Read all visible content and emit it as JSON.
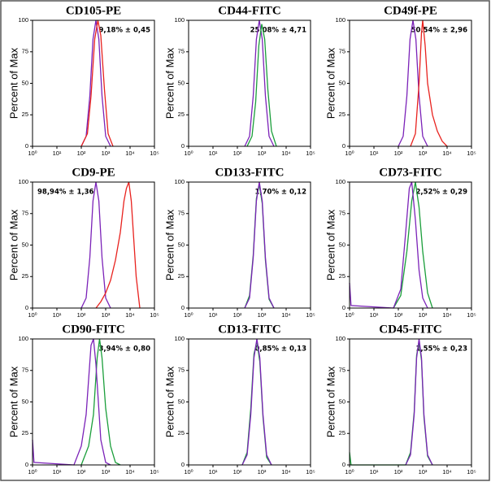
{
  "chart_data": [
    {
      "type": "line",
      "title": "CD105-PE",
      "annotation": "9,18% ± 0,45",
      "annotation_position": "top-right",
      "ylabel": "Percent of Max",
      "xscale": "log",
      "xlim": [
        1,
        100000
      ],
      "xticks": [
        {
          "value": 1,
          "label": "10⁰"
        },
        {
          "value": 10,
          "label": "10¹"
        },
        {
          "value": 100,
          "label": "10²"
        },
        {
          "value": 1000,
          "label": "10³"
        },
        {
          "value": 10000,
          "label": "10⁴"
        },
        {
          "value": 100000,
          "label": "10⁵"
        }
      ],
      "ylim": [
        0,
        100
      ],
      "yticks": [
        0,
        25,
        50,
        75,
        100
      ],
      "series": [
        {
          "color": "#7b22b8",
          "x": [
            100,
            158,
            224,
            302,
            398,
            525,
            708,
            1000,
            1585
          ],
          "values": [
            0,
            8,
            40,
            85,
            100,
            85,
            40,
            8,
            0
          ]
        },
        {
          "color": "#e8221e",
          "x": [
            100,
            178,
            251,
            355,
            479,
            631,
            891,
            1259,
            1995
          ],
          "values": [
            0,
            10,
            40,
            85,
            100,
            88,
            45,
            10,
            0
          ]
        }
      ]
    },
    {
      "type": "line",
      "title": "CD44-FITC",
      "annotation": "25,08% ± 4,71",
      "annotation_position": "top-right",
      "ylabel": "Percent of Max",
      "xscale": "log",
      "xlim": [
        1,
        100000
      ],
      "xticks": [
        {
          "value": 1,
          "label": "10⁰"
        },
        {
          "value": 10,
          "label": "10¹"
        },
        {
          "value": 100,
          "label": "10²"
        },
        {
          "value": 1000,
          "label": "10³"
        },
        {
          "value": 10000,
          "label": "10⁴"
        },
        {
          "value": 100000,
          "label": "10⁵"
        }
      ],
      "ylim": [
        0,
        100
      ],
      "yticks": [
        0,
        25,
        50,
        75,
        100
      ],
      "series": [
        {
          "color": "#7b22b8",
          "x": [
            200,
            316,
            447,
            603,
            794,
            1047,
            1413,
            1995,
            3162
          ],
          "values": [
            0,
            8,
            40,
            85,
            100,
            85,
            40,
            8,
            0
          ]
        },
        {
          "color": "#1a9e3a",
          "x": [
            251,
            398,
            562,
            759,
            1000,
            1318,
            1778,
            2512,
            3981
          ],
          "values": [
            0,
            8,
            35,
            80,
            97,
            85,
            45,
            12,
            0
          ]
        }
      ]
    },
    {
      "type": "line",
      "title": "CD49f-PE",
      "annotation": "50,54% ± 2,96",
      "annotation_position": "top-right",
      "ylabel": "Percent of Max",
      "xscale": "log",
      "xlim": [
        1,
        100000
      ],
      "xticks": [
        {
          "value": 1,
          "label": "10⁰"
        },
        {
          "value": 10,
          "label": "10¹"
        },
        {
          "value": 100,
          "label": "10²"
        },
        {
          "value": 1000,
          "label": "10³"
        },
        {
          "value": 10000,
          "label": "10⁴"
        },
        {
          "value": 100000,
          "label": "10⁵"
        }
      ],
      "ylim": [
        0,
        100
      ],
      "yticks": [
        0,
        25,
        50,
        75,
        100
      ],
      "series": [
        {
          "color": "#7b22b8",
          "x": [
            100,
            158,
            224,
            302,
            398,
            525,
            708,
            1000,
            1585
          ],
          "values": [
            0,
            8,
            40,
            85,
            100,
            85,
            40,
            8,
            0
          ]
        },
        {
          "color": "#e8221e",
          "x": [
            316,
            501,
            708,
            891,
            1000,
            1259,
            1585,
            2512,
            3981,
            6310,
            10000
          ],
          "values": [
            0,
            10,
            50,
            90,
            100,
            80,
            50,
            25,
            12,
            4,
            0
          ]
        }
      ]
    },
    {
      "type": "line",
      "title": "CD9-PE",
      "annotation": "98,94% ± 1,36",
      "annotation_position": "top-left",
      "ylabel": "Percent of Max",
      "xscale": "log",
      "xlim": [
        1,
        100000
      ],
      "xticks": [
        {
          "value": 1,
          "label": "10⁰"
        },
        {
          "value": 10,
          "label": "10¹"
        },
        {
          "value": 100,
          "label": "10²"
        },
        {
          "value": 1000,
          "label": "10³"
        },
        {
          "value": 10000,
          "label": "10⁴"
        },
        {
          "value": 100000,
          "label": "10⁵"
        }
      ],
      "ylim": [
        0,
        100
      ],
      "yticks": [
        0,
        25,
        50,
        75,
        100
      ],
      "series": [
        {
          "color": "#7b22b8",
          "x": [
            100,
            158,
            224,
            302,
            398,
            525,
            708,
            1000,
            1585
          ],
          "values": [
            0,
            8,
            40,
            85,
            100,
            85,
            40,
            8,
            0
          ]
        },
        {
          "color": "#e8221e",
          "x": [
            400,
            631,
            1000,
            1585,
            2512,
            3981,
            5623,
            7079,
            8913,
            11220,
            14125,
            17783,
            25119
          ],
          "values": [
            0,
            5,
            12,
            22,
            38,
            60,
            85,
            95,
            100,
            85,
            55,
            25,
            0
          ]
        }
      ]
    },
    {
      "type": "line",
      "title": "CD133-FITC",
      "annotation": "1,70% ± 0,12",
      "annotation_position": "top-right",
      "ylabel": "Percent of Max",
      "xscale": "log",
      "xlim": [
        1,
        100000
      ],
      "xticks": [
        {
          "value": 1,
          "label": "10⁰"
        },
        {
          "value": 10,
          "label": "10¹"
        },
        {
          "value": 100,
          "label": "10²"
        },
        {
          "value": 1000,
          "label": "10³"
        },
        {
          "value": 10000,
          "label": "10⁴"
        },
        {
          "value": 100000,
          "label": "10⁵"
        }
      ],
      "ylim": [
        0,
        100
      ],
      "yticks": [
        0,
        25,
        50,
        75,
        100
      ],
      "series": [
        {
          "color": "#1a9e3a",
          "x": [
            200,
            316,
            447,
            603,
            794,
            1047,
            1413,
            1995,
            3162
          ],
          "values": [
            0,
            10,
            42,
            87,
            98,
            83,
            38,
            7,
            0
          ]
        },
        {
          "color": "#7b22b8",
          "x": [
            200,
            316,
            447,
            603,
            794,
            1047,
            1413,
            1995,
            3162
          ],
          "values": [
            0,
            8,
            40,
            85,
            100,
            85,
            40,
            8,
            0
          ]
        }
      ]
    },
    {
      "type": "line",
      "title": "CD73-FITC",
      "annotation": "2,52% ± 0,29",
      "annotation_position": "top-right",
      "ylabel": "Percent of Max",
      "xscale": "log",
      "xlim": [
        1,
        100000
      ],
      "xticks": [
        {
          "value": 1,
          "label": "10⁰"
        },
        {
          "value": 10,
          "label": "10¹"
        },
        {
          "value": 100,
          "label": "10²"
        },
        {
          "value": 1000,
          "label": "10³"
        },
        {
          "value": 10000,
          "label": "10⁴"
        },
        {
          "value": 100000,
          "label": "10⁵"
        }
      ],
      "ylim": [
        0,
        100
      ],
      "yticks": [
        0,
        25,
        50,
        75,
        100
      ],
      "series": [
        {
          "color": "#1a9e3a",
          "x": [
            63,
            126,
            224,
            355,
            501,
            708,
            1000,
            1585,
            2512
          ],
          "values": [
            0,
            10,
            45,
            85,
            100,
            80,
            45,
            12,
            0
          ]
        },
        {
          "color": "#7b22b8",
          "x": [
            1,
            1.15,
            63,
            126,
            200,
            282,
            355,
            501,
            708,
            1000,
            1585
          ],
          "values": [
            20,
            2,
            0,
            15,
            60,
            95,
            100,
            70,
            30,
            8,
            0
          ]
        }
      ]
    },
    {
      "type": "line",
      "title": "CD90-FITC",
      "annotation": "3,94% ± 0,80",
      "annotation_position": "top-right",
      "ylabel": "Percent of Max",
      "xscale": "log",
      "xlim": [
        1,
        100000
      ],
      "xticks": [
        {
          "value": 1,
          "label": "10⁰"
        },
        {
          "value": 10,
          "label": "10¹"
        },
        {
          "value": 100,
          "label": "10²"
        },
        {
          "value": 1000,
          "label": "10³"
        },
        {
          "value": 10000,
          "label": "10⁴"
        },
        {
          "value": 100000,
          "label": "10⁵"
        }
      ],
      "ylim": [
        0,
        100
      ],
      "yticks": [
        0,
        25,
        50,
        75,
        100
      ],
      "series": [
        {
          "color": "#1a9e3a",
          "x": [
            100,
            200,
            316,
            447,
            562,
            708,
            1000,
            1585,
            2512,
            3981
          ],
          "values": [
            0,
            15,
            40,
            85,
            100,
            85,
            45,
            15,
            2,
            0
          ]
        },
        {
          "color": "#7b22b8",
          "x": [
            1,
            1.15,
            50,
            100,
            158,
            251,
            316,
            398,
            631,
            1000,
            1585
          ],
          "values": [
            20,
            2,
            0,
            15,
            40,
            95,
            100,
            80,
            20,
            2,
            0
          ]
        }
      ]
    },
    {
      "type": "line",
      "title": "CD13-FITC",
      "annotation": "0,85% ± 0,13",
      "annotation_position": "top-right",
      "ylabel": "Percent of Max",
      "xscale": "log",
      "xlim": [
        1,
        100000
      ],
      "xticks": [
        {
          "value": 1,
          "label": "10⁰"
        },
        {
          "value": 10,
          "label": "10¹"
        },
        {
          "value": 100,
          "label": "10²"
        },
        {
          "value": 1000,
          "label": "10³"
        },
        {
          "value": 10000,
          "label": "10⁴"
        },
        {
          "value": 100000,
          "label": "10⁵"
        }
      ],
      "ylim": [
        0,
        100
      ],
      "yticks": [
        0,
        25,
        50,
        75,
        100
      ],
      "series": [
        {
          "color": "#1a9e3a",
          "x": [
            158,
            251,
            355,
            479,
            631,
            832,
            1122,
            1585,
            2512
          ],
          "values": [
            0,
            10,
            45,
            88,
            98,
            82,
            38,
            6,
            0
          ]
        },
        {
          "color": "#7b22b8",
          "x": [
            158,
            251,
            355,
            479,
            631,
            832,
            1122,
            1585,
            2512
          ],
          "values": [
            0,
            8,
            40,
            85,
            100,
            85,
            40,
            8,
            0
          ]
        }
      ]
    },
    {
      "type": "line",
      "title": "CD45-FITC",
      "annotation": "1,55% ± 0,23",
      "annotation_position": "top-right",
      "ylabel": "Percent of Max",
      "xscale": "log",
      "xlim": [
        1,
        100000
      ],
      "xticks": [
        {
          "value": 1,
          "label": "10⁰"
        },
        {
          "value": 10,
          "label": "10¹"
        },
        {
          "value": 100,
          "label": "10²"
        },
        {
          "value": 1000,
          "label": "10³"
        },
        {
          "value": 10000,
          "label": "10⁴"
        },
        {
          "value": 100000,
          "label": "10⁵"
        }
      ],
      "ylim": [
        0,
        100
      ],
      "yticks": [
        0,
        25,
        50,
        75,
        100
      ],
      "series": [
        {
          "color": "#1a9e3a",
          "x": [
            1,
            1.15,
            200,
            316,
            447,
            562,
            708,
            891,
            1122,
            1585,
            2512
          ],
          "values": [
            10,
            0,
            0,
            10,
            42,
            87,
            98,
            83,
            38,
            7,
            0
          ]
        },
        {
          "color": "#7b22b8",
          "x": [
            200,
            316,
            447,
            562,
            708,
            891,
            1122,
            1585,
            2512
          ],
          "values": [
            0,
            8,
            40,
            85,
            100,
            85,
            40,
            8,
            0
          ]
        }
      ]
    }
  ]
}
